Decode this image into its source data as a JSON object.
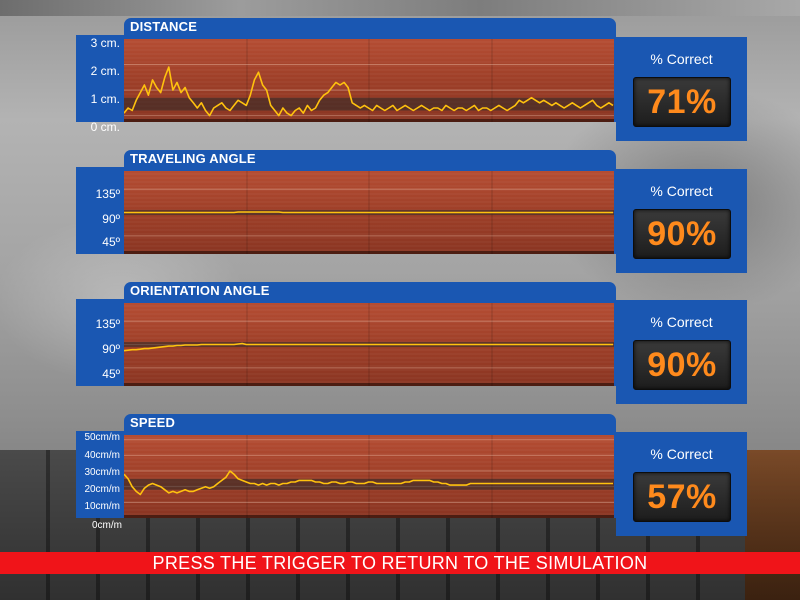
{
  "banner": {
    "text": "PRESS THE TRIGGER TO RETURN TO THE SIMULATION"
  },
  "colors": {
    "panel_blue": "#1a57b2",
    "plot_red": "#a5432c",
    "trace_yellow": "#ffc20e",
    "score_orange": "#ff8a1c",
    "banner_red": "#f01419"
  },
  "panels": [
    {
      "title": "DISTANCE",
      "y_ticks": [
        "3 cm.",
        "2 cm.",
        "1 cm.",
        "0 cm."
      ],
      "score_title": "% Correct",
      "score": "71%"
    },
    {
      "title": "TRAVELING ANGLE",
      "y_ticks": [
        "135º",
        "90º",
        "45º"
      ],
      "score_title": "% Correct",
      "score": "90%"
    },
    {
      "title": "ORIENTATION ANGLE",
      "y_ticks": [
        "135º",
        "90º",
        "45º"
      ],
      "score_title": "% Correct",
      "score": "90%"
    },
    {
      "title": "SPEED",
      "y_ticks": [
        "50cm/m",
        "40cm/m",
        "30cm/m",
        "20cm/m",
        "10cm/m",
        "0cm/m"
      ],
      "score_title": "% Correct",
      "score": "57%"
    }
  ],
  "chart_data": [
    {
      "type": "line",
      "title": "DISTANCE",
      "ylim": [
        -0.25,
        3.0
      ],
      "target_band": [
        0.2,
        0.7
      ],
      "y_ticks": [
        3,
        2,
        1,
        0
      ],
      "series": [
        {
          "values": [
            0.1,
            0.3,
            0.2,
            0.6,
            0.9,
            1.2,
            0.8,
            1.4,
            1.1,
            0.9,
            1.5,
            1.9,
            1.0,
            1.3,
            0.9,
            1.1,
            0.7,
            0.5,
            0.3,
            0.5,
            0.2,
            0.0,
            0.3,
            0.4,
            0.5,
            0.3,
            0.2,
            0.4,
            0.6,
            0.5,
            0.4,
            0.8,
            1.4,
            1.7,
            1.2,
            1.0,
            0.4,
            0.2,
            0.0,
            0.3,
            0.1,
            0.0,
            0.2,
            0.3,
            0.1,
            0.4,
            0.2,
            0.3,
            0.6,
            0.8,
            0.9,
            1.1,
            1.3,
            1.2,
            1.3,
            1.1,
            0.5,
            0.4,
            0.3,
            0.4,
            0.3,
            0.2,
            0.4,
            0.3,
            0.2,
            0.3,
            0.4,
            0.2,
            0.3,
            0.4,
            0.3,
            0.2,
            0.3,
            0.4,
            0.3,
            0.2,
            0.3,
            0.3,
            0.2,
            0.4,
            0.3,
            0.2,
            0.3,
            0.3,
            0.2,
            0.3,
            0.4,
            0.2,
            0.3,
            0.3,
            0.2,
            0.3,
            0.4,
            0.3,
            0.2,
            0.3,
            0.4,
            0.6,
            0.5,
            0.6,
            0.7,
            0.6,
            0.5,
            0.6,
            0.5,
            0.4,
            0.5,
            0.4,
            0.3,
            0.4,
            0.5,
            0.4,
            0.3,
            0.4,
            0.5,
            0.6,
            0.4,
            0.3,
            0.4,
            0.5,
            0.4
          ]
        }
      ]
    },
    {
      "type": "line",
      "title": "TRAVELING ANGLE",
      "ylim": [
        10,
        170
      ],
      "target_band": [
        85,
        95
      ],
      "y_ticks": [
        135,
        90,
        45
      ],
      "series": [
        {
          "values": [
            90,
            90,
            90,
            90,
            90,
            90,
            90,
            90,
            90,
            90,
            90,
            90,
            90,
            90,
            90,
            90,
            90,
            90,
            90,
            90,
            90,
            90,
            90,
            90,
            90,
            90,
            90,
            90,
            91,
            91,
            91,
            91,
            91,
            91,
            91,
            91,
            91,
            91,
            91,
            90,
            90,
            90,
            90,
            90,
            90,
            90,
            90,
            90,
            90,
            90,
            90,
            90,
            90,
            90,
            90,
            90,
            90,
            90,
            90,
            90,
            90,
            90,
            90,
            90,
            90,
            90,
            90,
            90,
            90,
            90,
            90,
            90,
            90,
            90,
            90,
            90,
            90,
            90,
            90,
            90,
            90,
            90,
            90,
            90,
            90,
            90,
            90,
            90,
            90,
            90,
            90,
            90,
            90,
            90,
            90,
            90,
            90,
            90,
            90,
            90,
            90,
            90,
            90,
            90,
            90,
            90,
            90,
            90,
            90,
            90,
            90,
            90,
            90,
            90,
            90,
            90,
            90,
            90,
            90,
            90,
            90
          ]
        }
      ]
    },
    {
      "type": "line",
      "title": "ORIENTATION ANGLE",
      "ylim": [
        10,
        170
      ],
      "target_band": [
        85,
        95
      ],
      "y_ticks": [
        135,
        90,
        45
      ],
      "series": [
        {
          "values": [
            78,
            79,
            80,
            80,
            81,
            82,
            82,
            83,
            84,
            85,
            86,
            87,
            87,
            88,
            88,
            89,
            89,
            89,
            89,
            90,
            90,
            90,
            90,
            90,
            90,
            90,
            90,
            90,
            91,
            92,
            90,
            90,
            90,
            90,
            90,
            90,
            90,
            90,
            90,
            90,
            90,
            90,
            90,
            90,
            90,
            90,
            90,
            90,
            90,
            90,
            90,
            90,
            90,
            90,
            90,
            90,
            90,
            90,
            90,
            90,
            90,
            90,
            90,
            90,
            90,
            90,
            90,
            90,
            90,
            90,
            90,
            90,
            90,
            90,
            90,
            90,
            90,
            90,
            90,
            90,
            90,
            90,
            90,
            90,
            90,
            90,
            90,
            90,
            90,
            90,
            90,
            90,
            90,
            90,
            90,
            90,
            90,
            90,
            90,
            90,
            90,
            90,
            90,
            90,
            90,
            90,
            90,
            90,
            90,
            90,
            90,
            90,
            90,
            90,
            90,
            90,
            90,
            90,
            90,
            90,
            90
          ]
        }
      ]
    },
    {
      "type": "line",
      "title": "SPEED",
      "ylim": [
        0,
        53
      ],
      "target_band": [
        18,
        25
      ],
      "y_ticks": [
        50,
        40,
        30,
        20,
        10,
        0
      ],
      "series": [
        {
          "values": [
            28,
            25,
            20,
            17,
            15,
            19,
            21,
            22,
            21,
            20,
            18,
            16,
            17,
            16,
            17,
            18,
            17,
            17,
            18,
            19,
            20,
            19,
            20,
            22,
            24,
            26,
            30,
            28,
            25,
            24,
            23,
            22,
            22,
            21,
            22,
            21,
            22,
            22,
            21,
            22,
            22,
            23,
            23,
            24,
            24,
            24,
            24,
            23,
            23,
            22,
            22,
            23,
            23,
            22,
            22,
            23,
            23,
            22,
            22,
            22,
            23,
            23,
            22,
            22,
            22,
            22,
            22,
            22,
            22,
            23,
            23,
            24,
            24,
            24,
            24,
            24,
            23,
            23,
            22,
            22,
            21,
            21,
            21,
            21,
            21,
            22,
            22,
            22,
            22,
            22,
            22,
            22,
            22,
            22,
            22,
            22,
            22,
            22,
            22,
            22,
            22,
            22,
            22,
            22,
            22,
            22,
            22,
            22,
            22,
            22,
            22,
            22,
            22,
            22,
            22,
            22,
            22,
            22,
            22,
            22,
            22
          ]
        }
      ]
    }
  ]
}
